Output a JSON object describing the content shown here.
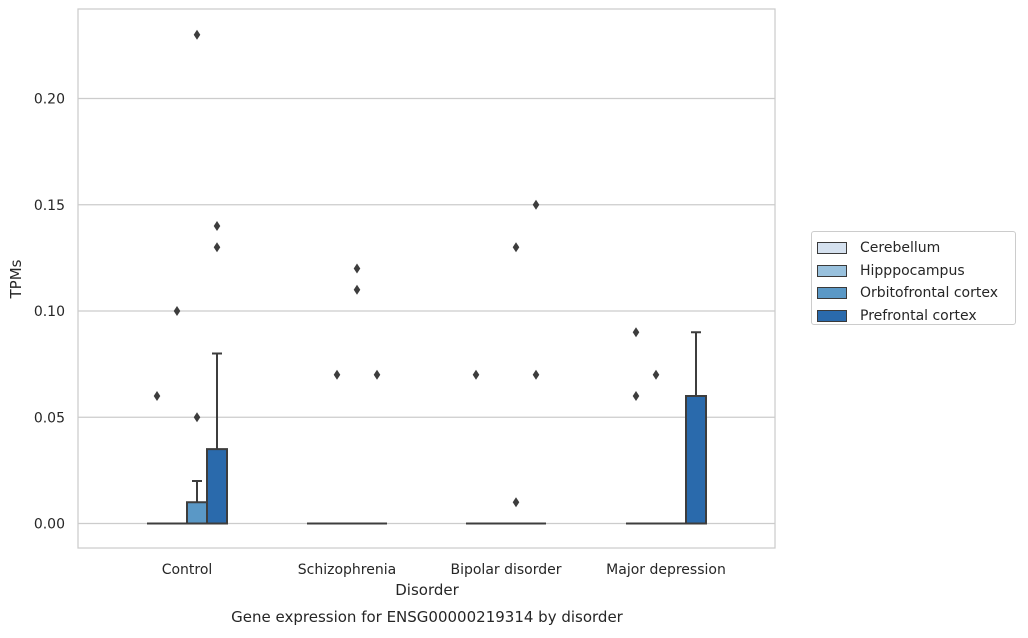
{
  "chart_data": {
    "type": "box",
    "title": "Gene expression for ENSG00000219314 by disorder",
    "xlabel": "Disorder",
    "ylabel": "TPMs",
    "ylim": [
      -0.011,
      0.242
    ],
    "yticks": [
      "0.00",
      "0.05",
      "0.10",
      "0.15",
      "0.20"
    ],
    "ytick_values": [
      0,
      0.05,
      0.1,
      0.15,
      0.2
    ],
    "grid": true,
    "legend_position": "right",
    "categories": [
      "Control",
      "Schizophrenia",
      "Bipolar disorder",
      "Major depression"
    ],
    "series": [
      {
        "name": "Cerebellum",
        "color": "#d5e1ef",
        "boxes": [
          {
            "q1": 0,
            "median": 0,
            "q3": 0,
            "whisker_low": 0,
            "whisker_high": 0,
            "outliers": [
              0.06
            ]
          },
          {
            "q1": 0,
            "median": 0,
            "q3": 0,
            "whisker_low": 0,
            "whisker_high": 0,
            "outliers": []
          },
          {
            "q1": 0,
            "median": 0,
            "q3": 0,
            "whisker_low": 0,
            "whisker_high": 0,
            "outliers": [
              0.07
            ]
          },
          {
            "q1": 0,
            "median": 0,
            "q3": 0,
            "whisker_low": 0,
            "whisker_high": 0,
            "outliers": [
              0.06,
              0.09
            ]
          }
        ]
      },
      {
        "name": "Hipppocampus",
        "color": "#99c1dd",
        "boxes": [
          {
            "q1": 0,
            "median": 0,
            "q3": 0,
            "whisker_low": 0,
            "whisker_high": 0,
            "outliers": [
              0.1
            ]
          },
          {
            "q1": 0,
            "median": 0,
            "q3": 0,
            "whisker_low": 0,
            "whisker_high": 0,
            "outliers": [
              0.07
            ]
          },
          {
            "q1": 0,
            "median": 0,
            "q3": 0,
            "whisker_low": 0,
            "whisker_high": 0,
            "outliers": []
          },
          {
            "q1": 0,
            "median": 0,
            "q3": 0,
            "whisker_low": 0,
            "whisker_high": 0,
            "outliers": [
              0.07
            ]
          }
        ]
      },
      {
        "name": "Orbitofrontal cortex",
        "color": "#5a98c6",
        "boxes": [
          {
            "q1": 0,
            "median": 0,
            "q3": 0.01,
            "whisker_low": 0,
            "whisker_high": 0.02,
            "outliers": [
              0.05,
              0.23
            ]
          },
          {
            "q1": 0,
            "median": 0,
            "q3": 0,
            "whisker_low": 0,
            "whisker_high": 0,
            "outliers": [
              0.11,
              0.12
            ]
          },
          {
            "q1": 0,
            "median": 0,
            "q3": 0,
            "whisker_low": 0,
            "whisker_high": 0,
            "outliers": [
              0.01,
              0.13
            ]
          },
          {
            "q1": 0,
            "median": 0,
            "q3": 0,
            "whisker_low": 0,
            "whisker_high": 0,
            "outliers": []
          }
        ]
      },
      {
        "name": "Prefrontal cortex",
        "color": "#2a6aac",
        "boxes": [
          {
            "q1": 0,
            "median": 0,
            "q3": 0.035,
            "whisker_low": 0,
            "whisker_high": 0.08,
            "outliers": [
              0.13,
              0.14
            ]
          },
          {
            "q1": 0,
            "median": 0,
            "q3": 0,
            "whisker_low": 0,
            "whisker_high": 0,
            "outliers": [
              0.07
            ]
          },
          {
            "q1": 0,
            "median": 0,
            "q3": 0,
            "whisker_low": 0,
            "whisker_high": 0,
            "outliers": [
              0.07,
              0.15
            ]
          },
          {
            "q1": 0,
            "median": 0,
            "q3": 0.06,
            "whisker_low": 0,
            "whisker_high": 0.09,
            "outliers": []
          }
        ]
      }
    ]
  }
}
